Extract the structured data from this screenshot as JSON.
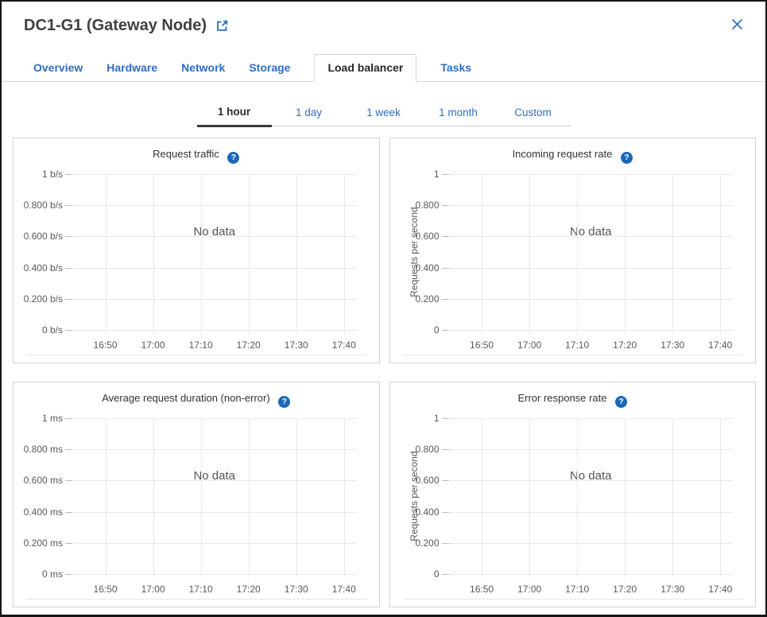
{
  "header": {
    "title": "DC1-G1 (Gateway Node)",
    "external_link_icon": "open-in-new",
    "close_icon": "close-x"
  },
  "tabs": [
    {
      "label": "Overview",
      "active": false
    },
    {
      "label": "Hardware",
      "active": false
    },
    {
      "label": "Network",
      "active": false
    },
    {
      "label": "Storage",
      "active": false
    },
    {
      "label": "Load balancer",
      "active": true
    },
    {
      "label": "Tasks",
      "active": false
    }
  ],
  "time_range": [
    {
      "label": "1 hour",
      "active": true
    },
    {
      "label": "1 day",
      "active": false
    },
    {
      "label": "1 week",
      "active": false
    },
    {
      "label": "1 month",
      "active": false
    },
    {
      "label": "Custom",
      "active": false
    }
  ],
  "colors": {
    "link_blue": "#2e6fc0",
    "help_icon_blue": "#1a68b8",
    "active_tab_text": "#26282a",
    "panel_border": "#d4d4d4",
    "gridline": "#e9e9e9",
    "axis_text": "#595959"
  },
  "chart_data": [
    {
      "type": "line",
      "title": "Request traffic",
      "help_icon": "question-mark",
      "no_data_label": "No data",
      "ylabel": null,
      "y_ticks": [
        "1 b/s",
        "0.800 b/s",
        "0.600 b/s",
        "0.400 b/s",
        "0.200 b/s",
        "0 b/s"
      ],
      "x_ticks": [
        "16:50",
        "17:00",
        "17:10",
        "17:20",
        "17:30",
        "17:40"
      ],
      "ylim": [
        0,
        1
      ],
      "grid": true,
      "legend_position": "none",
      "series": []
    },
    {
      "type": "line",
      "title": "Incoming request rate",
      "help_icon": "question-mark",
      "no_data_label": "No data",
      "ylabel": "Requests per second",
      "y_ticks": [
        "1",
        "0.800",
        "0.600",
        "0.400",
        "0.200",
        "0"
      ],
      "x_ticks": [
        "16:50",
        "17:00",
        "17:10",
        "17:20",
        "17:30",
        "17:40"
      ],
      "ylim": [
        0,
        1
      ],
      "grid": true,
      "legend_position": "none",
      "series": []
    },
    {
      "type": "line",
      "title": "Average request duration (non-error)",
      "help_icon": "question-mark",
      "no_data_label": "No data",
      "ylabel": null,
      "y_ticks": [
        "1 ms",
        "0.800 ms",
        "0.600 ms",
        "0.400 ms",
        "0.200 ms",
        "0 ms"
      ],
      "x_ticks": [
        "16:50",
        "17:00",
        "17:10",
        "17:20",
        "17:30",
        "17:40"
      ],
      "ylim": [
        0,
        1
      ],
      "grid": true,
      "legend_position": "none",
      "series": []
    },
    {
      "type": "line",
      "title": "Error response rate",
      "help_icon": "question-mark",
      "no_data_label": "No data",
      "ylabel": "Requests per second",
      "y_ticks": [
        "1",
        "0.800",
        "0.600",
        "0.400",
        "0.200",
        "0"
      ],
      "x_ticks": [
        "16:50",
        "17:00",
        "17:10",
        "17:20",
        "17:30",
        "17:40"
      ],
      "ylim": [
        0,
        1
      ],
      "grid": true,
      "legend_position": "none",
      "series": []
    }
  ]
}
